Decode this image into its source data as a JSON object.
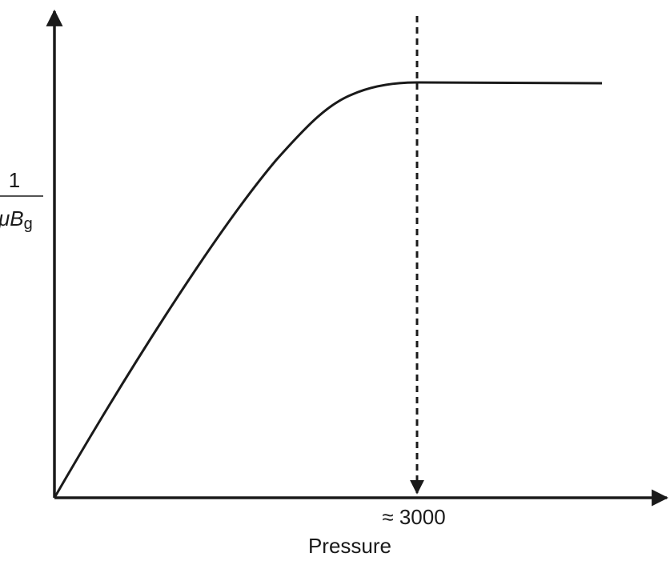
{
  "y_axis_label": {
    "numerator": "1",
    "denominator": "μB",
    "subscript": "g"
  },
  "x_axis_label": "Pressure",
  "annotation": "≈ 3000"
}
